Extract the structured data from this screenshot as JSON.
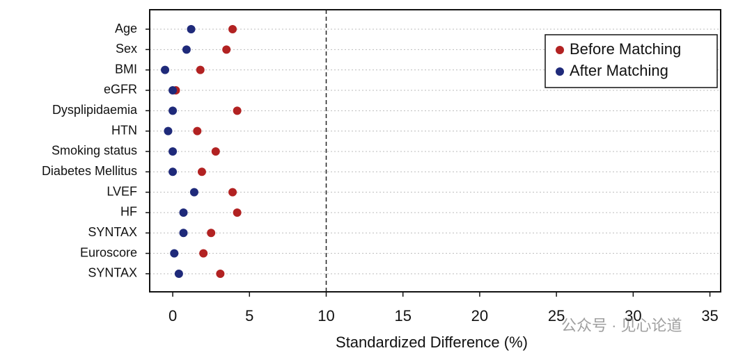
{
  "chart_data": {
    "type": "dot",
    "x_label": "Standardized Difference (%)",
    "categories": [
      "Age",
      "Sex",
      "BMI",
      "eGFR",
      "Dysplipidaemia",
      "HTN",
      "Smoking status",
      "Diabetes Mellitus",
      "LVEF",
      "HF",
      "SYNTAX",
      "Euroscore",
      "SYNTAX"
    ],
    "series": [
      {
        "name": "Before Matching",
        "color": "#b22222",
        "values": [
          3.9,
          3.5,
          1.8,
          0.2,
          4.2,
          1.6,
          2.8,
          1.9,
          3.9,
          4.2,
          2.5,
          2.0,
          3.1
        ]
      },
      {
        "name": "After Matching",
        "color": "#1f2a7a",
        "values": [
          1.2,
          0.9,
          -0.5,
          0.0,
          0.0,
          -0.3,
          0.0,
          0.0,
          1.4,
          0.7,
          0.7,
          0.1,
          0.4
        ]
      }
    ],
    "xlim": [
      -1.5,
      35.7
    ],
    "xticks": [
      0,
      5,
      10,
      15,
      20,
      25,
      30,
      35
    ],
    "reference_line": 10,
    "grid": true,
    "legend": "top-right",
    "watermark": "公众号 · 见心论道"
  }
}
